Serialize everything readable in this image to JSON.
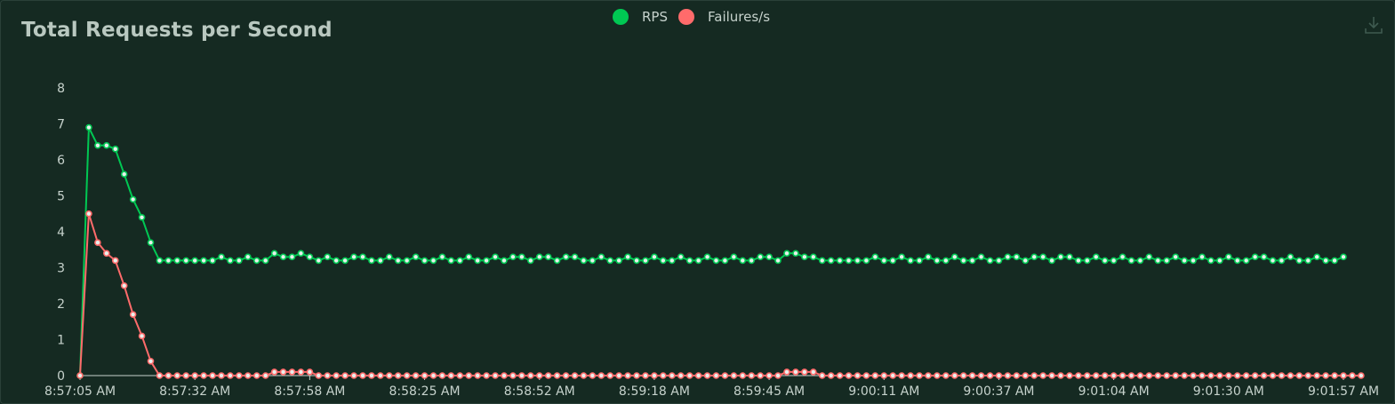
{
  "chart_data": {
    "type": "line",
    "title": "Total Requests per Second",
    "ylim": [
      0,
      8
    ],
    "yticks": [
      "0",
      "1",
      "2",
      "3",
      "4",
      "5",
      "6",
      "7",
      "8"
    ],
    "xtick_labels": [
      "8:57:05 AM",
      "8:57:32 AM",
      "8:57:58 AM",
      "8:58:25 AM",
      "8:58:52 AM",
      "8:59:18 AM",
      "8:59:45 AM",
      "9:00:11 AM",
      "9:00:37 AM",
      "9:01:04 AM",
      "9:01:30 AM",
      "9:01:57 AM"
    ],
    "legend_position": "top-center",
    "grid": false,
    "series": [
      {
        "name": "RPS",
        "color": "#00c853",
        "values": [
          0,
          6.9,
          6.4,
          6.4,
          6.3,
          5.6,
          4.9,
          4.4,
          3.7,
          3.2,
          3.2,
          3.2,
          3.2,
          3.2,
          3.2,
          3.2,
          3.3,
          3.2,
          3.2,
          3.3,
          3.2,
          3.2,
          3.4,
          3.3,
          3.3,
          3.4,
          3.3,
          3.2,
          3.3,
          3.2,
          3.2,
          3.3,
          3.3,
          3.2,
          3.2,
          3.3,
          3.2,
          3.2,
          3.3,
          3.2,
          3.2,
          3.3,
          3.2,
          3.2,
          3.3,
          3.2,
          3.2,
          3.3,
          3.2,
          3.3,
          3.3,
          3.2,
          3.3,
          3.3,
          3.2,
          3.3,
          3.3,
          3.2,
          3.2,
          3.3,
          3.2,
          3.2,
          3.3,
          3.2,
          3.2,
          3.3,
          3.2,
          3.2,
          3.3,
          3.2,
          3.2,
          3.3,
          3.2,
          3.2,
          3.3,
          3.2,
          3.2,
          3.3,
          3.3,
          3.2,
          3.4,
          3.4,
          3.3,
          3.3,
          3.2,
          3.2,
          3.2,
          3.2,
          3.2,
          3.2,
          3.3,
          3.2,
          3.2,
          3.3,
          3.2,
          3.2,
          3.3,
          3.2,
          3.2,
          3.3,
          3.2,
          3.2,
          3.3,
          3.2,
          3.2,
          3.3,
          3.3,
          3.2,
          3.3,
          3.3,
          3.2,
          3.3,
          3.3,
          3.2,
          3.2,
          3.3,
          3.2,
          3.2,
          3.3,
          3.2,
          3.2,
          3.3,
          3.2,
          3.2,
          3.3,
          3.2,
          3.2,
          3.3,
          3.2,
          3.2,
          3.3,
          3.2,
          3.2,
          3.3,
          3.3,
          3.2,
          3.2,
          3.3,
          3.2,
          3.2,
          3.3,
          3.2,
          3.2,
          3.3
        ]
      },
      {
        "name": "Failures/s",
        "color": "#ff6b6b",
        "values": [
          0,
          4.5,
          3.7,
          3.4,
          3.2,
          2.5,
          1.7,
          1.1,
          0.4,
          0,
          0,
          0,
          0,
          0,
          0,
          0,
          0,
          0,
          0,
          0,
          0,
          0,
          0.1,
          0.1,
          0.1,
          0.1,
          0.1,
          0,
          0,
          0,
          0,
          0,
          0,
          0,
          0,
          0,
          0,
          0,
          0,
          0,
          0,
          0,
          0,
          0,
          0,
          0,
          0,
          0,
          0,
          0,
          0,
          0,
          0,
          0,
          0,
          0,
          0,
          0,
          0,
          0,
          0,
          0,
          0,
          0,
          0,
          0,
          0,
          0,
          0,
          0,
          0,
          0,
          0,
          0,
          0,
          0,
          0,
          0,
          0,
          0,
          0.1,
          0.1,
          0.1,
          0.1,
          0,
          0,
          0,
          0,
          0,
          0,
          0,
          0,
          0,
          0,
          0,
          0,
          0,
          0,
          0,
          0,
          0,
          0,
          0,
          0,
          0,
          0,
          0,
          0,
          0,
          0,
          0,
          0,
          0,
          0,
          0,
          0,
          0,
          0,
          0,
          0,
          0,
          0,
          0,
          0,
          0,
          0,
          0,
          0,
          0,
          0,
          0,
          0,
          0,
          0,
          0,
          0,
          0,
          0,
          0,
          0,
          0,
          0,
          0,
          0,
          0,
          0
        ]
      }
    ]
  },
  "toolbar": {
    "download_icon": "download-icon"
  }
}
